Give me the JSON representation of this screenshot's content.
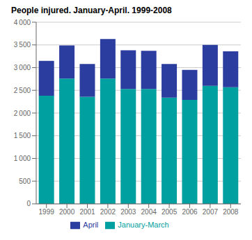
{
  "chart_data": {
    "type": "bar",
    "title": "People injured. January-April. 1999-2008",
    "categories": [
      "1999",
      "2000",
      "2001",
      "2002",
      "2003",
      "2004",
      "2005",
      "2006",
      "2007",
      "2008"
    ],
    "series": [
      {
        "name": "January-March",
        "color": "#00A0A0",
        "values": [
          2380,
          2760,
          2360,
          2760,
          2530,
          2530,
          2340,
          2290,
          2600,
          2570
        ]
      },
      {
        "name": "April",
        "color": "#2B3D9E",
        "values": [
          770,
          730,
          720,
          870,
          850,
          840,
          740,
          660,
          900,
          790
        ]
      }
    ],
    "stacked": true,
    "ylim": [
      0,
      4000
    ],
    "yticks": [
      0,
      500,
      {
        "value": 1000,
        "label": "1 000"
      },
      {
        "value": 1500,
        "label": "1 500"
      },
      {
        "value": 2000,
        "label": "2 000"
      },
      {
        "value": 2500,
        "label": "2 500"
      },
      {
        "value": 3000,
        "label": "3 000"
      },
      {
        "value": 3500,
        "label": "3 500"
      },
      {
        "value": 4000,
        "label": "4 000"
      }
    ],
    "grid": true,
    "legend": "bottom"
  }
}
